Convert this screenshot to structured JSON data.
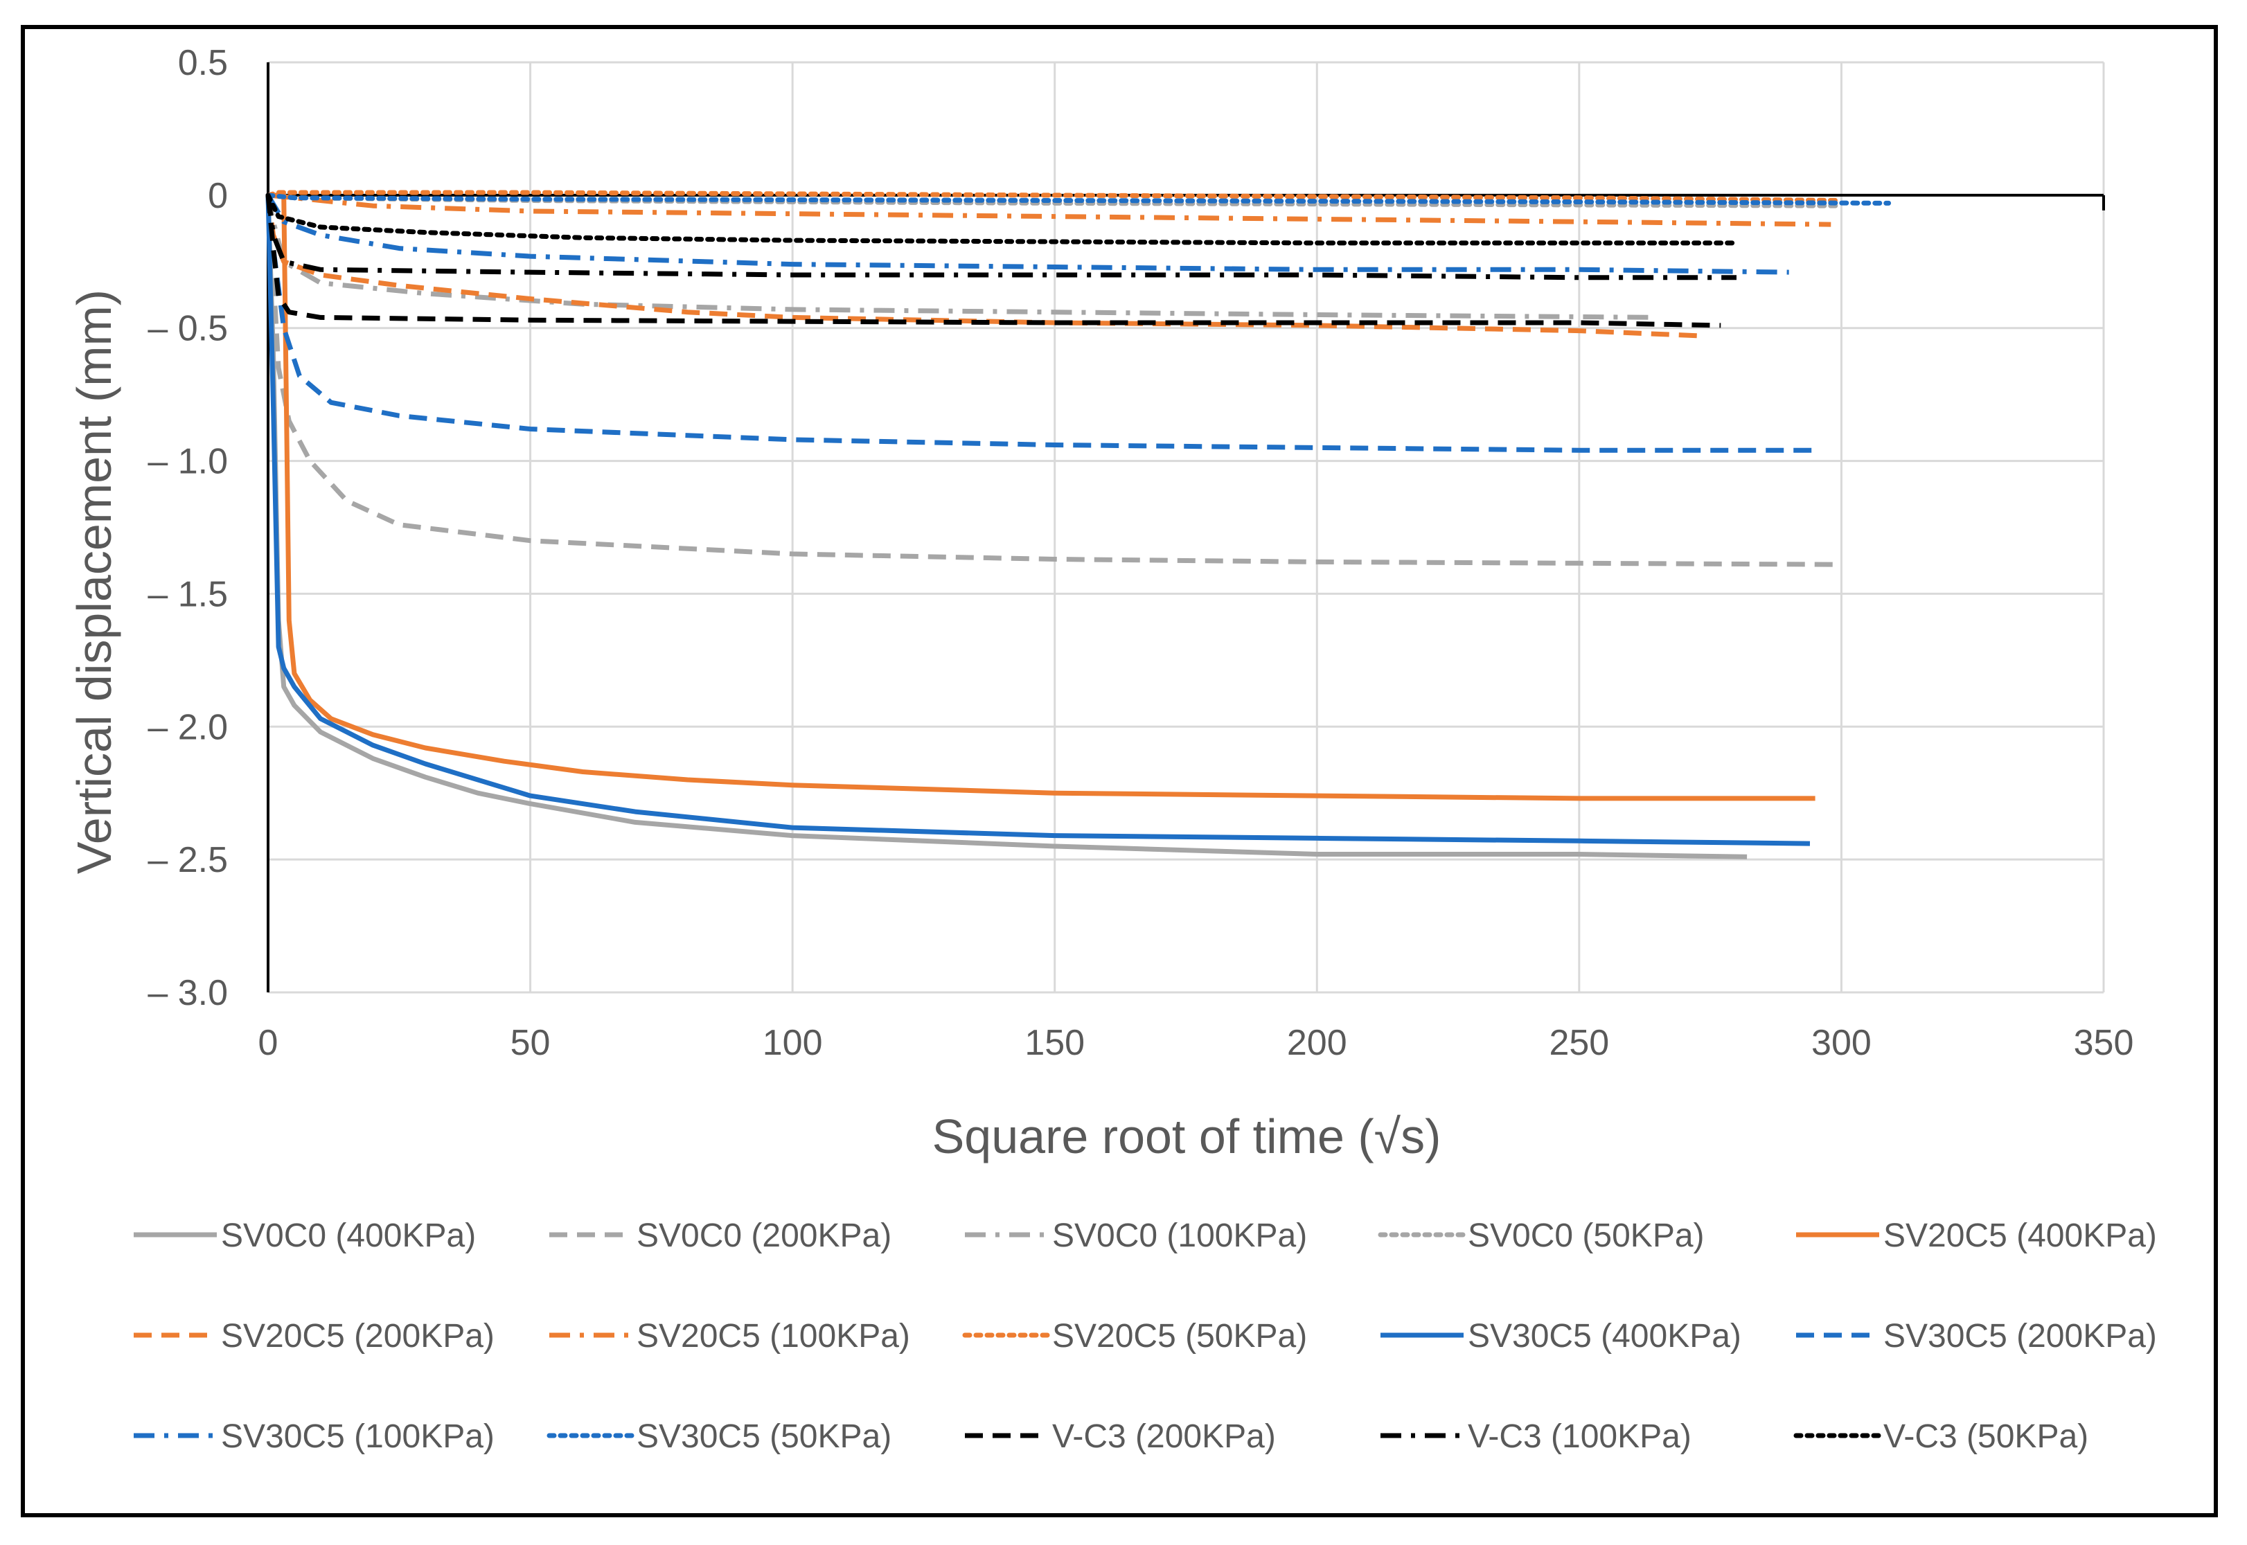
{
  "chart_data": {
    "type": "line",
    "xlabel": "Square root of time (√s)",
    "ylabel": "Vertical displacement (mm)",
    "xlim": [
      0,
      350
    ],
    "ylim": [
      -3.0,
      0.5
    ],
    "x_ticks": [
      "0",
      "50",
      "100",
      "150",
      "200",
      "250",
      "300",
      "350"
    ],
    "y_ticks": [
      "0.5",
      "0",
      "– 0.5",
      "– 1.0",
      "– 1.5",
      "– 2.0",
      "– 2.5",
      "– 3.0"
    ],
    "grid": true,
    "legend_position": "bottom",
    "series": [
      {
        "name": "SV0C0 (400KPa)",
        "color": "#a6a6a6",
        "dash": "solid",
        "points": [
          [
            0,
            0
          ],
          [
            1,
            -0.6
          ],
          [
            2,
            -1.6
          ],
          [
            3,
            -1.85
          ],
          [
            5,
            -1.92
          ],
          [
            10,
            -2.02
          ],
          [
            20,
            -2.12
          ],
          [
            30,
            -2.19
          ],
          [
            40,
            -2.25
          ],
          [
            50,
            -2.29
          ],
          [
            70,
            -2.36
          ],
          [
            100,
            -2.41
          ],
          [
            150,
            -2.45
          ],
          [
            200,
            -2.48
          ],
          [
            250,
            -2.48
          ],
          [
            282,
            -2.49
          ]
        ]
      },
      {
        "name": "SV0C0 (200KPa)",
        "color": "#a6a6a6",
        "dash": "dash",
        "points": [
          [
            0,
            0
          ],
          [
            1,
            -0.3
          ],
          [
            2,
            -0.65
          ],
          [
            4,
            -0.85
          ],
          [
            8,
            -1.0
          ],
          [
            15,
            -1.15
          ],
          [
            25,
            -1.24
          ],
          [
            50,
            -1.3
          ],
          [
            100,
            -1.35
          ],
          [
            150,
            -1.37
          ],
          [
            200,
            -1.38
          ],
          [
            250,
            -1.385
          ],
          [
            300,
            -1.39
          ]
        ]
      },
      {
        "name": "SV0C0 (100KPa)",
        "color": "#a6a6a6",
        "dash": "dashdot",
        "points": [
          [
            0,
            0
          ],
          [
            1,
            -0.1
          ],
          [
            3,
            -0.25
          ],
          [
            10,
            -0.33
          ],
          [
            30,
            -0.37
          ],
          [
            60,
            -0.41
          ],
          [
            100,
            -0.43
          ],
          [
            150,
            -0.44
          ],
          [
            200,
            -0.45
          ],
          [
            265,
            -0.46
          ]
        ]
      },
      {
        "name": "SV0C0 (50KPa)",
        "color": "#a6a6a6",
        "dash": "dot",
        "points": [
          [
            0,
            0
          ],
          [
            5,
            -0.01
          ],
          [
            50,
            -0.02
          ],
          [
            150,
            -0.03
          ],
          [
            300,
            -0.04
          ]
        ]
      },
      {
        "name": "SV20C5 (400KPa)",
        "color": "#ed7d31",
        "dash": "solid",
        "points": [
          [
            0,
            0
          ],
          [
            3,
            0
          ],
          [
            3.5,
            -0.8
          ],
          [
            4,
            -1.6
          ],
          [
            5,
            -1.8
          ],
          [
            8,
            -1.9
          ],
          [
            12,
            -1.97
          ],
          [
            20,
            -2.03
          ],
          [
            30,
            -2.08
          ],
          [
            45,
            -2.13
          ],
          [
            60,
            -2.17
          ],
          [
            80,
            -2.2
          ],
          [
            100,
            -2.22
          ],
          [
            150,
            -2.25
          ],
          [
            200,
            -2.26
          ],
          [
            250,
            -2.27
          ],
          [
            295,
            -2.27
          ]
        ]
      },
      {
        "name": "SV20C5 (200KPa)",
        "color": "#ed7d31",
        "dash": "dash",
        "points": [
          [
            0,
            0
          ],
          [
            1,
            -0.15
          ],
          [
            3,
            -0.25
          ],
          [
            10,
            -0.3
          ],
          [
            25,
            -0.34
          ],
          [
            50,
            -0.39
          ],
          [
            80,
            -0.44
          ],
          [
            100,
            -0.46
          ],
          [
            150,
            -0.48
          ],
          [
            200,
            -0.49
          ],
          [
            250,
            -0.51
          ],
          [
            274,
            -0.53
          ]
        ]
      },
      {
        "name": "SV20C5 (100KPa)",
        "color": "#ed7d31",
        "dash": "dashdot",
        "points": [
          [
            0,
            0
          ],
          [
            5,
            -0.01
          ],
          [
            20,
            -0.04
          ],
          [
            50,
            -0.06
          ],
          [
            100,
            -0.07
          ],
          [
            150,
            -0.08
          ],
          [
            200,
            -0.09
          ],
          [
            250,
            -0.1
          ],
          [
            298,
            -0.11
          ]
        ]
      },
      {
        "name": "SV20C5 (50KPa)",
        "color": "#ed7d31",
        "dash": "dot",
        "points": [
          [
            0,
            0
          ],
          [
            2,
            0.01
          ],
          [
            50,
            0.01
          ],
          [
            150,
            0.0
          ],
          [
            250,
            -0.01
          ],
          [
            300,
            -0.02
          ]
        ]
      },
      {
        "name": "SV30C5 (400KPa)",
        "color": "#1f6fc5",
        "dash": "solid",
        "points": [
          [
            0,
            0
          ],
          [
            1,
            -0.8
          ],
          [
            2,
            -1.7
          ],
          [
            3,
            -1.78
          ],
          [
            5,
            -1.85
          ],
          [
            10,
            -1.97
          ],
          [
            20,
            -2.07
          ],
          [
            30,
            -2.14
          ],
          [
            50,
            -2.26
          ],
          [
            70,
            -2.32
          ],
          [
            100,
            -2.38
          ],
          [
            150,
            -2.41
          ],
          [
            200,
            -2.42
          ],
          [
            250,
            -2.43
          ],
          [
            294,
            -2.44
          ]
        ]
      },
      {
        "name": "SV30C5 (200KPa)",
        "color": "#1f6fc5",
        "dash": "dash",
        "points": [
          [
            0,
            0
          ],
          [
            1,
            -0.2
          ],
          [
            3,
            -0.5
          ],
          [
            6,
            -0.68
          ],
          [
            12,
            -0.78
          ],
          [
            25,
            -0.83
          ],
          [
            50,
            -0.88
          ],
          [
            100,
            -0.92
          ],
          [
            150,
            -0.94
          ],
          [
            200,
            -0.95
          ],
          [
            250,
            -0.96
          ],
          [
            296,
            -0.96
          ]
        ]
      },
      {
        "name": "SV30C5 (100KPa)",
        "color": "#1f6fc5",
        "dash": "dashdot",
        "points": [
          [
            0,
            0
          ],
          [
            3,
            -0.1
          ],
          [
            10,
            -0.15
          ],
          [
            25,
            -0.2
          ],
          [
            50,
            -0.23
          ],
          [
            100,
            -0.26
          ],
          [
            150,
            -0.27
          ],
          [
            200,
            -0.28
          ],
          [
            250,
            -0.28
          ],
          [
            290,
            -0.29
          ]
        ]
      },
      {
        "name": "SV30C5 (50KPa)",
        "color": "#1f6fc5",
        "dash": "dot",
        "points": [
          [
            0,
            0
          ],
          [
            5,
            -0.01
          ],
          [
            50,
            -0.015
          ],
          [
            150,
            -0.02
          ],
          [
            250,
            -0.025
          ],
          [
            309,
            -0.03
          ]
        ]
      },
      {
        "name": "V-C3 (200KPa)",
        "color": "#000000",
        "dash": "dash",
        "points": [
          [
            0,
            0
          ],
          [
            1,
            -0.2
          ],
          [
            2,
            -0.38
          ],
          [
            4,
            -0.44
          ],
          [
            10,
            -0.46
          ],
          [
            50,
            -0.47
          ],
          [
            100,
            -0.475
          ],
          [
            150,
            -0.48
          ],
          [
            200,
            -0.48
          ],
          [
            250,
            -0.48
          ],
          [
            277,
            -0.49
          ]
        ]
      },
      {
        "name": "V-C3 (100KPa)",
        "color": "#000000",
        "dash": "dashdot",
        "points": [
          [
            0,
            0
          ],
          [
            1,
            -0.15
          ],
          [
            3,
            -0.25
          ],
          [
            10,
            -0.28
          ],
          [
            50,
            -0.29
          ],
          [
            100,
            -0.3
          ],
          [
            200,
            -0.3
          ],
          [
            250,
            -0.31
          ],
          [
            280,
            -0.31
          ]
        ]
      },
      {
        "name": "V-C3 (50KPa)",
        "color": "#000000",
        "dash": "dot",
        "points": [
          [
            0,
            0
          ],
          [
            2,
            -0.08
          ],
          [
            10,
            -0.12
          ],
          [
            30,
            -0.14
          ],
          [
            60,
            -0.16
          ],
          [
            100,
            -0.17
          ],
          [
            200,
            -0.18
          ],
          [
            280,
            -0.18
          ]
        ]
      }
    ]
  }
}
